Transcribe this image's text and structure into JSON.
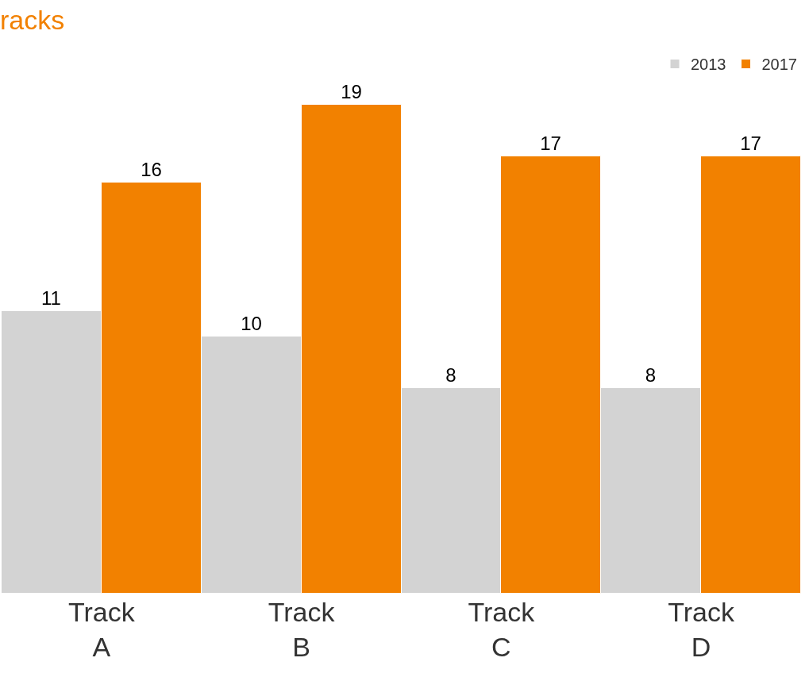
{
  "chart_data": {
    "type": "bar",
    "title": "racks",
    "categories": [
      "Track\nA",
      "Track\nB",
      "Track\nC",
      "Track\nD"
    ],
    "series": [
      {
        "name": "2013",
        "color": "#d3d3d3",
        "values": [
          11,
          10,
          8,
          8
        ]
      },
      {
        "name": "2017",
        "color": "#f28100",
        "values": [
          16,
          19,
          17,
          17
        ]
      }
    ],
    "tick_labels": "x",
    "data_labels": true,
    "legend": "top right"
  }
}
